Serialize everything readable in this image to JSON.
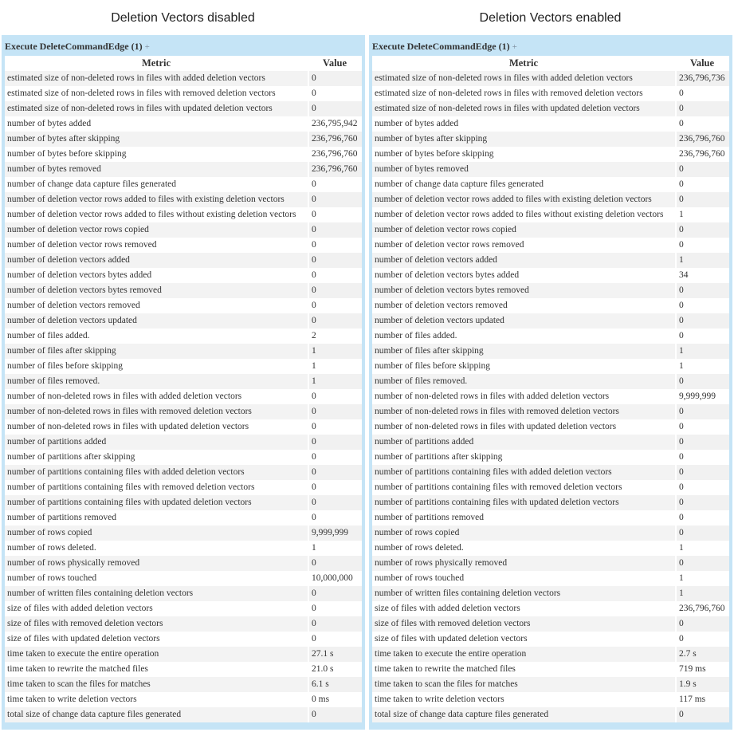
{
  "panels": [
    {
      "title": "Deletion Vectors disabled",
      "header": "Execute DeleteCommandEdge (1)",
      "plus": "+",
      "col_metric": "Metric",
      "col_value": "Value",
      "rows": [
        [
          "estimated size of non-deleted rows in files with added deletion vectors",
          "0"
        ],
        [
          "estimated size of non-deleted rows in files with removed deletion vectors",
          "0"
        ],
        [
          "estimated size of non-deleted rows in files with updated deletion vectors",
          "0"
        ],
        [
          "number of bytes added",
          "236,795,942"
        ],
        [
          "number of bytes after skipping",
          "236,796,760"
        ],
        [
          "number of bytes before skipping",
          "236,796,760"
        ],
        [
          "number of bytes removed",
          "236,796,760"
        ],
        [
          "number of change data capture files generated",
          "0"
        ],
        [
          "number of deletion vector rows added to files with existing deletion vectors",
          "0"
        ],
        [
          "number of deletion vector rows added to files without existing deletion vectors",
          "0"
        ],
        [
          "number of deletion vector rows copied",
          "0"
        ],
        [
          "number of deletion vector rows removed",
          "0"
        ],
        [
          "number of deletion vectors added",
          "0"
        ],
        [
          "number of deletion vectors bytes added",
          "0"
        ],
        [
          "number of deletion vectors bytes removed",
          "0"
        ],
        [
          "number of deletion vectors removed",
          "0"
        ],
        [
          "number of deletion vectors updated",
          "0"
        ],
        [
          "number of files added.",
          "2"
        ],
        [
          "number of files after skipping",
          "1"
        ],
        [
          "number of files before skipping",
          "1"
        ],
        [
          "number of files removed.",
          "1"
        ],
        [
          "number of non-deleted rows in files with added deletion vectors",
          "0"
        ],
        [
          "number of non-deleted rows in files with removed deletion vectors",
          "0"
        ],
        [
          "number of non-deleted rows in files with updated deletion vectors",
          "0"
        ],
        [
          "number of partitions added",
          "0"
        ],
        [
          "number of partitions after skipping",
          "0"
        ],
        [
          "number of partitions containing files with added deletion vectors",
          "0"
        ],
        [
          "number of partitions containing files with removed deletion vectors",
          "0"
        ],
        [
          "number of partitions containing files with updated deletion vectors",
          "0"
        ],
        [
          "number of partitions removed",
          "0"
        ],
        [
          "number of rows copied",
          "9,999,999"
        ],
        [
          "number of rows deleted.",
          "1"
        ],
        [
          "number of rows physically removed",
          "0"
        ],
        [
          "number of rows touched",
          "10,000,000"
        ],
        [
          "number of written files containing deletion vectors",
          "0"
        ],
        [
          "size of files with added deletion vectors",
          "0"
        ],
        [
          "size of files with removed deletion vectors",
          "0"
        ],
        [
          "size of files with updated deletion vectors",
          "0"
        ],
        [
          "time taken to execute the entire operation",
          "27.1 s"
        ],
        [
          "time taken to rewrite the matched files",
          "21.0 s"
        ],
        [
          "time taken to scan the files for matches",
          "6.1 s"
        ],
        [
          "time taken to write deletion vectors",
          "0 ms"
        ],
        [
          "total size of change data capture files generated",
          "0"
        ]
      ]
    },
    {
      "title": "Deletion Vectors enabled",
      "header": "Execute DeleteCommandEdge (1)",
      "plus": "+",
      "col_metric": "Metric",
      "col_value": "Value",
      "rows": [
        [
          "estimated size of non-deleted rows in files with added deletion vectors",
          "236,796,736"
        ],
        [
          "estimated size of non-deleted rows in files with removed deletion vectors",
          "0"
        ],
        [
          "estimated size of non-deleted rows in files with updated deletion vectors",
          "0"
        ],
        [
          "number of bytes added",
          "0"
        ],
        [
          "number of bytes after skipping",
          "236,796,760"
        ],
        [
          "number of bytes before skipping",
          "236,796,760"
        ],
        [
          "number of bytes removed",
          "0"
        ],
        [
          "number of change data capture files generated",
          "0"
        ],
        [
          "number of deletion vector rows added to files with existing deletion vectors",
          "0"
        ],
        [
          "number of deletion vector rows added to files without existing deletion vectors",
          "1"
        ],
        [
          "number of deletion vector rows copied",
          "0"
        ],
        [
          "number of deletion vector rows removed",
          "0"
        ],
        [
          "number of deletion vectors added",
          "1"
        ],
        [
          "number of deletion vectors bytes added",
          "34"
        ],
        [
          "number of deletion vectors bytes removed",
          "0"
        ],
        [
          "number of deletion vectors removed",
          "0"
        ],
        [
          "number of deletion vectors updated",
          "0"
        ],
        [
          "number of files added.",
          "0"
        ],
        [
          "number of files after skipping",
          "1"
        ],
        [
          "number of files before skipping",
          "1"
        ],
        [
          "number of files removed.",
          "0"
        ],
        [
          "number of non-deleted rows in files with added deletion vectors",
          "9,999,999"
        ],
        [
          "number of non-deleted rows in files with removed deletion vectors",
          "0"
        ],
        [
          "number of non-deleted rows in files with updated deletion vectors",
          "0"
        ],
        [
          "number of partitions added",
          "0"
        ],
        [
          "number of partitions after skipping",
          "0"
        ],
        [
          "number of partitions containing files with added deletion vectors",
          "0"
        ],
        [
          "number of partitions containing files with removed deletion vectors",
          "0"
        ],
        [
          "number of partitions containing files with updated deletion vectors",
          "0"
        ],
        [
          "number of partitions removed",
          "0"
        ],
        [
          "number of rows copied",
          "0"
        ],
        [
          "number of rows deleted.",
          "1"
        ],
        [
          "number of rows physically removed",
          "0"
        ],
        [
          "number of rows touched",
          "1"
        ],
        [
          "number of written files containing deletion vectors",
          "1"
        ],
        [
          "size of files with added deletion vectors",
          "236,796,760"
        ],
        [
          "size of files with removed deletion vectors",
          "0"
        ],
        [
          "size of files with updated deletion vectors",
          "0"
        ],
        [
          "time taken to execute the entire operation",
          "2.7 s"
        ],
        [
          "time taken to rewrite the matched files",
          "719 ms"
        ],
        [
          "time taken to scan the files for matches",
          "1.9 s"
        ],
        [
          "time taken to write deletion vectors",
          "117 ms"
        ],
        [
          "total size of change data capture files generated",
          "0"
        ]
      ]
    }
  ]
}
